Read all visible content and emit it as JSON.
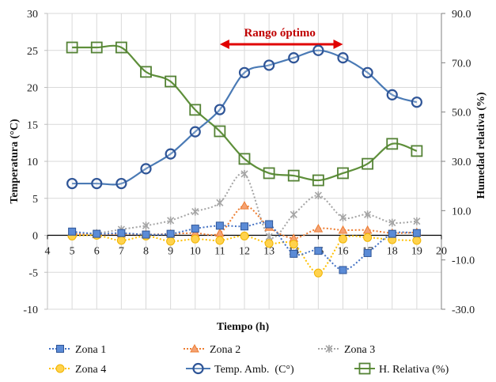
{
  "chart_data": {
    "type": "line",
    "title": "",
    "xlabel": "Tiempo (h)",
    "ylabel": "Temperatura (°C)",
    "y2label": "Humedad relativa (%)",
    "xlim": [
      4,
      20
    ],
    "ylim": [
      -10,
      30
    ],
    "y2lim": [
      -30,
      90
    ],
    "grid": true,
    "legend_position": "bottom",
    "x_ticks": [
      "4",
      "5",
      "6",
      "7",
      "8",
      "9",
      "10",
      "11",
      "12",
      "13",
      "14",
      "15",
      "16",
      "17",
      "18",
      "19",
      "20"
    ],
    "y_ticks": [
      "30",
      "25",
      "20",
      "15",
      "10",
      "5",
      "0",
      "-5",
      "-10"
    ],
    "y2_ticks": [
      "90.0",
      "70.0",
      "50.0",
      "30.0",
      "10.0",
      "-10.0",
      "-30.0"
    ],
    "x": [
      5,
      6,
      7,
      8,
      9,
      10,
      11,
      12,
      13,
      14,
      15,
      16,
      17,
      18,
      19
    ],
    "series": [
      {
        "name": "Zona 1",
        "axis": "left",
        "color": "#4472c4",
        "marker": "square",
        "style": "dotted",
        "values": [
          0.5,
          0.2,
          0.3,
          0.1,
          0.2,
          0.9,
          1.3,
          1.2,
          1.5,
          -2.5,
          -2.1,
          -4.7,
          -2.4,
          0.2,
          0.3
        ]
      },
      {
        "name": "Zona 2",
        "axis": "left",
        "color": "#ed7d31",
        "marker": "triangle",
        "style": "dotted",
        "values": [
          0.2,
          0.1,
          0.2,
          0.1,
          0.2,
          0.3,
          0.3,
          4.0,
          1.1,
          -0.4,
          0.9,
          0.7,
          0.7,
          0.3,
          0.4
        ]
      },
      {
        "name": "Zona 3",
        "axis": "left",
        "color": "#a5a5a5",
        "marker": "star",
        "style": "dotted",
        "values": [
          0.3,
          0.3,
          0.8,
          1.3,
          2.0,
          3.2,
          4.4,
          8.3,
          -0.2,
          2.8,
          5.4,
          2.4,
          2.8,
          1.7,
          1.9
        ]
      },
      {
        "name": "Zona 4",
        "axis": "left",
        "color": "#ffc000",
        "marker": "circle-filled",
        "style": "dotted",
        "values": [
          -0.1,
          0.0,
          -0.7,
          -0.1,
          -0.8,
          -0.5,
          -0.7,
          -0.1,
          -1.1,
          -1.2,
          -5.1,
          -0.5,
          -0.3,
          -0.6,
          -0.7
        ]
      },
      {
        "name": "Temp. Amb.  (C°)",
        "axis": "left",
        "color": "#2f5597",
        "line_color": "#4a7ab5",
        "marker": "circle-open",
        "style": "solid",
        "values": [
          7.0,
          7.0,
          7.0,
          9.0,
          11.0,
          14.0,
          17.0,
          22.0,
          23.0,
          24.0,
          25.0,
          24.0,
          22.0,
          19.0,
          18.0
        ]
      },
      {
        "name": "H. Relativa (%)",
        "axis": "right",
        "color": "#548235",
        "line_color": "#5e8f3a",
        "marker": "square-open",
        "style": "solid",
        "values": [
          76.2,
          76.2,
          76.2,
          66.3,
          62.4,
          50.9,
          42.2,
          31.0,
          25.2,
          24.2,
          22.3,
          25.2,
          29.0,
          37.1,
          34.2
        ]
      }
    ],
    "annotations": [
      {
        "text": "Rango óptimo",
        "type": "double-arrow",
        "x_from": 11,
        "x_to": 16,
        "color": "#e00000"
      }
    ]
  }
}
